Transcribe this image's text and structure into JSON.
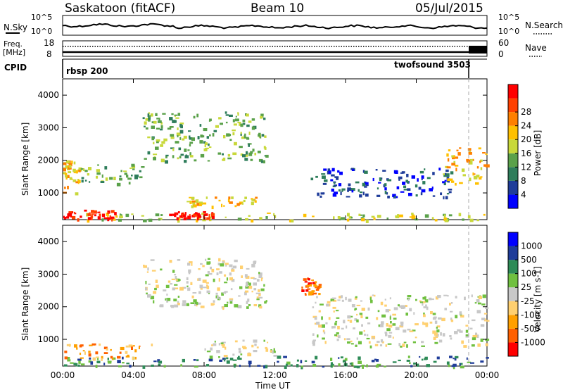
{
  "header": {
    "station": "Saskatoon (fitACF)",
    "beam": "Beam 10",
    "date": "05/Jul/2015"
  },
  "top_panel": {
    "left_label": "N.Sky",
    "right_label": "N.Search",
    "left_ticks": [
      "10^5",
      "10^0"
    ],
    "right_ticks": [
      "10^5",
      "10^0"
    ]
  },
  "freq_panel": {
    "left_label_1": "Freq.",
    "left_label_2": "[MHz]",
    "left_ticks": [
      "18",
      "8"
    ],
    "right_label": "Nave",
    "right_ticks": [
      "60",
      "0"
    ]
  },
  "cpid_panel": {
    "label": "CPID",
    "programs": [
      {
        "name": "rbsp 200",
        "start_hour": 0,
        "end_hour": 22.9
      },
      {
        "name": "twofsound 3503",
        "start_hour": 22.9,
        "end_hour": 24
      }
    ]
  },
  "x_axis": {
    "label": "Time UT",
    "ticks": [
      "00:00",
      "04:00",
      "08:00",
      "12:00",
      "16:00",
      "20:00",
      "00:00"
    ]
  },
  "colors": {
    "power_scale": [
      "#0000ff",
      "#1f3c99",
      "#2e7d5b",
      "#5aa14a",
      "#c8d83a",
      "#ffc000",
      "#ff8000",
      "#ff4000",
      "#ff0000"
    ],
    "velocity_scale": [
      "#ff0000",
      "#ff6000",
      "#ffa000",
      "#ffd070",
      "#c8c8c8",
      "#70c040",
      "#2e8b57",
      "#1f3c99",
      "#0000ff"
    ]
  },
  "chart_data": [
    {
      "type": "heatmap",
      "title": "",
      "xlabel": "Time UT",
      "ylabel": "Slant Range [km]",
      "xlim_hours": [
        0,
        24
      ],
      "ylim": [
        180,
        4500
      ],
      "yticks": [
        "1000",
        "2000",
        "3000",
        "4000"
      ],
      "colorbar": {
        "label": "Power [dB]",
        "ticks": [
          "4",
          "8",
          "12",
          "16",
          "20",
          "24",
          "28"
        ]
      },
      "features": [
        {
          "t_start": 0,
          "t_end": 24,
          "range_start": 180,
          "range_end": 400,
          "value_db": 16
        },
        {
          "t_start": 0,
          "t_end": 3,
          "range_start": 200,
          "range_end": 500,
          "value_db": 28
        },
        {
          "t_start": 6,
          "t_end": 8.5,
          "range_start": 250,
          "range_end": 450,
          "value_db": 28
        },
        {
          "t_start": 7,
          "t_end": 11,
          "range_start": 600,
          "range_end": 900,
          "value_db": 20
        },
        {
          "t_start": 0,
          "t_end": 1,
          "range_start": 1000,
          "range_end": 2000,
          "value_db": 20
        },
        {
          "t_start": 1,
          "t_end": 4.5,
          "range_start": 1300,
          "range_end": 1900,
          "value_db": 12
        },
        {
          "t_start": 4.5,
          "t_end": 11.5,
          "range_start": 2000,
          "range_end": 3500,
          "value_db": 14
        },
        {
          "t_start": 14,
          "t_end": 22,
          "range_start": 900,
          "range_end": 1800,
          "value_db": 8
        },
        {
          "t_start": 21.5,
          "t_end": 24,
          "range_start": 1300,
          "range_end": 2400,
          "value_db": 20
        }
      ]
    },
    {
      "type": "heatmap",
      "title": "",
      "xlabel": "Time UT",
      "ylabel": "Slant Range [km]",
      "xlim_hours": [
        0,
        24
      ],
      "ylim": [
        180,
        4500
      ],
      "yticks": [
        "1000",
        "2000",
        "3000",
        "4000"
      ],
      "colorbar": {
        "label": "Velocity [m s-1]",
        "ticks": [
          "1000",
          "500",
          "100",
          "25",
          "-25",
          "-100",
          "-500",
          "-1000"
        ]
      },
      "features": [
        {
          "t_start": 0,
          "t_end": 24,
          "range_start": 180,
          "range_end": 500,
          "value_ms": 100
        },
        {
          "t_start": 0,
          "t_end": 5,
          "range_start": 400,
          "range_end": 900,
          "value_ms": -100
        },
        {
          "t_start": 4.5,
          "t_end": 11.5,
          "range_start": 2000,
          "range_end": 3500,
          "value_ms": 0
        },
        {
          "t_start": 8,
          "t_end": 12,
          "range_start": 500,
          "range_end": 1000,
          "value_ms": 0
        },
        {
          "t_start": 13.5,
          "t_end": 14.5,
          "range_start": 2400,
          "range_end": 2900,
          "value_ms": -500
        },
        {
          "t_start": 14,
          "t_end": 24,
          "range_start": 800,
          "range_end": 2400,
          "value_ms": 0
        }
      ]
    }
  ]
}
